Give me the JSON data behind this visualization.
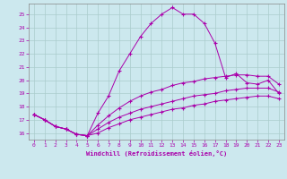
{
  "xlabel": "Windchill (Refroidissement éolien,°C)",
  "bg_color": "#cce8ee",
  "line_color": "#aa00aa",
  "grid_color": "#aacccc",
  "xlim": [
    -0.5,
    23.5
  ],
  "ylim": [
    15.5,
    25.8
  ],
  "xticks": [
    0,
    1,
    2,
    3,
    4,
    5,
    6,
    7,
    8,
    9,
    10,
    11,
    12,
    13,
    14,
    15,
    16,
    17,
    18,
    19,
    20,
    21,
    22,
    23
  ],
  "yticks": [
    16,
    17,
    18,
    19,
    20,
    21,
    22,
    23,
    24,
    25
  ],
  "curve1_x": [
    0,
    1,
    2,
    3,
    4,
    5,
    6,
    7,
    8,
    9,
    10,
    11,
    12,
    13,
    14,
    15,
    16,
    17,
    18,
    19,
    20,
    21,
    22,
    23
  ],
  "curve1_y": [
    17.4,
    17.0,
    16.5,
    16.3,
    15.9,
    15.8,
    17.5,
    18.8,
    20.7,
    22.0,
    23.3,
    24.3,
    25.0,
    25.5,
    25.0,
    25.0,
    24.3,
    22.8,
    20.2,
    20.5,
    19.8,
    19.7,
    20.0,
    19.0
  ],
  "curve2_x": [
    0,
    1,
    2,
    3,
    4,
    5,
    6,
    7,
    8,
    9,
    10,
    11,
    12,
    13,
    14,
    15,
    16,
    17,
    18,
    19,
    20,
    21,
    22,
    23
  ],
  "curve2_y": [
    17.4,
    17.0,
    16.5,
    16.3,
    15.9,
    15.8,
    16.6,
    17.3,
    17.9,
    18.4,
    18.8,
    19.1,
    19.3,
    19.6,
    19.8,
    19.9,
    20.1,
    20.2,
    20.3,
    20.4,
    20.4,
    20.3,
    20.3,
    19.7
  ],
  "curve3_x": [
    0,
    1,
    2,
    3,
    4,
    5,
    6,
    7,
    8,
    9,
    10,
    11,
    12,
    13,
    14,
    15,
    16,
    17,
    18,
    19,
    20,
    21,
    22,
    23
  ],
  "curve3_y": [
    17.4,
    17.0,
    16.5,
    16.3,
    15.9,
    15.8,
    16.3,
    16.8,
    17.2,
    17.5,
    17.8,
    18.0,
    18.2,
    18.4,
    18.6,
    18.8,
    18.9,
    19.0,
    19.2,
    19.3,
    19.4,
    19.4,
    19.4,
    19.1
  ],
  "curve4_x": [
    0,
    1,
    2,
    3,
    4,
    5,
    6,
    7,
    8,
    9,
    10,
    11,
    12,
    13,
    14,
    15,
    16,
    17,
    18,
    19,
    20,
    21,
    22,
    23
  ],
  "curve4_y": [
    17.4,
    17.0,
    16.5,
    16.3,
    15.9,
    15.8,
    16.0,
    16.4,
    16.7,
    17.0,
    17.2,
    17.4,
    17.6,
    17.8,
    17.9,
    18.1,
    18.2,
    18.4,
    18.5,
    18.6,
    18.7,
    18.8,
    18.8,
    18.6
  ]
}
